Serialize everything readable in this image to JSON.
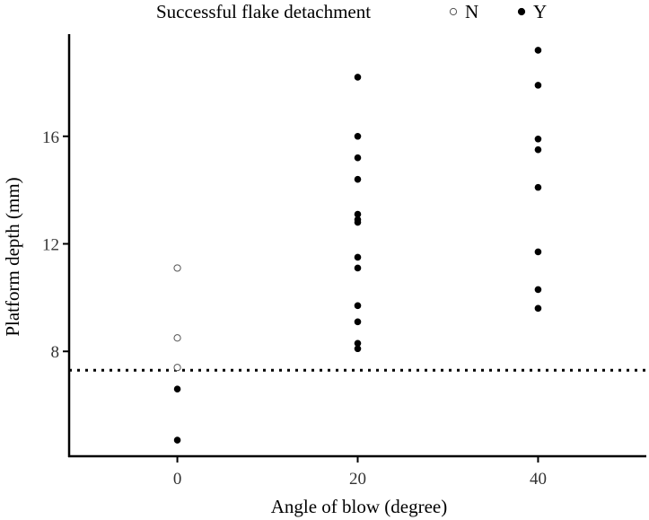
{
  "chart_data": {
    "type": "scatter",
    "title": "",
    "xlabel": "Angle of blow (degree)",
    "ylabel": "Platform depth (mm)",
    "xlim": [
      -12,
      52
    ],
    "ylim": [
      4.1,
      19.8
    ],
    "x_ticks": [
      0,
      20,
      40
    ],
    "y_ticks": [
      8,
      12,
      16
    ],
    "grid": false,
    "reference_line": {
      "y": 7.3,
      "style": "dotted",
      "color": "#000000"
    },
    "legend": {
      "title": "Successful flake detachment",
      "placement": "top",
      "entries": [
        {
          "label": "N",
          "marker": "open-circle"
        },
        {
          "label": "Y",
          "marker": "filled-circle"
        }
      ]
    },
    "series": [
      {
        "name": "N",
        "marker": "open-circle",
        "points": [
          {
            "x": 0,
            "y": 11.1
          },
          {
            "x": 0,
            "y": 8.5
          },
          {
            "x": 0,
            "y": 7.4
          }
        ]
      },
      {
        "name": "Y",
        "marker": "filled-circle",
        "points": [
          {
            "x": 0,
            "y": 6.6
          },
          {
            "x": 0,
            "y": 4.7
          },
          {
            "x": 20,
            "y": 18.2
          },
          {
            "x": 20,
            "y": 16.0
          },
          {
            "x": 20,
            "y": 15.2
          },
          {
            "x": 20,
            "y": 14.4
          },
          {
            "x": 20,
            "y": 13.1
          },
          {
            "x": 20,
            "y": 12.9
          },
          {
            "x": 20,
            "y": 12.8
          },
          {
            "x": 20,
            "y": 11.5
          },
          {
            "x": 20,
            "y": 11.1
          },
          {
            "x": 20,
            "y": 9.7
          },
          {
            "x": 20,
            "y": 9.1
          },
          {
            "x": 20,
            "y": 8.3
          },
          {
            "x": 20,
            "y": 8.1
          },
          {
            "x": 40,
            "y": 19.2
          },
          {
            "x": 40,
            "y": 17.9
          },
          {
            "x": 40,
            "y": 15.9
          },
          {
            "x": 40,
            "y": 15.5
          },
          {
            "x": 40,
            "y": 14.1
          },
          {
            "x": 40,
            "y": 11.7
          },
          {
            "x": 40,
            "y": 10.3
          },
          {
            "x": 40,
            "y": 9.6
          }
        ]
      }
    ],
    "colors": {
      "axis": "#000000",
      "tick_label": "#333333",
      "point": "#000000"
    }
  }
}
